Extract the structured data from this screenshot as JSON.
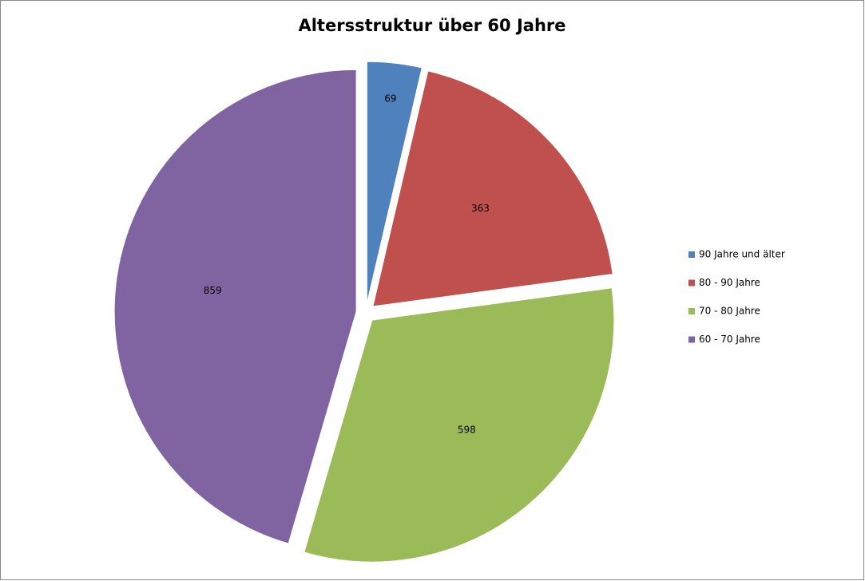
{
  "chart_data": {
    "type": "pie",
    "title": "Altersstruktur über 60 Jahre",
    "categories": [
      "90 Jahre und älter",
      "80 - 90 Jahre",
      "70 - 80 Jahre",
      "60 - 70 Jahre"
    ],
    "values": [
      69,
      363,
      598,
      859
    ],
    "colors": [
      "#4f81bd",
      "#c0504d",
      "#9bbb59",
      "#8064a2"
    ],
    "legend": "right"
  }
}
